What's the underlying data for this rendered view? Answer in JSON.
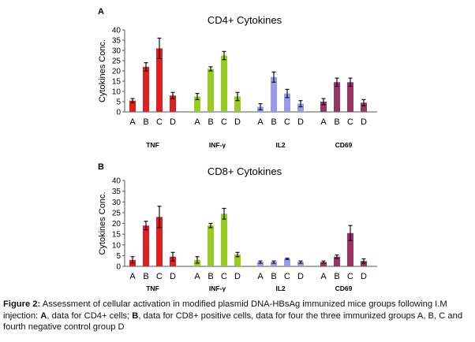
{
  "chart_data": [
    {
      "panel": "A",
      "type": "bar",
      "title": "CD4+ Cytokines",
      "ylabel": "Cytokines Conc.",
      "ylim": [
        0,
        40
      ],
      "yticks": [
        "0",
        "5",
        "10",
        "15",
        "20",
        "25",
        "30",
        "35",
        "40"
      ],
      "categories": [
        "A",
        "B",
        "C",
        "D"
      ],
      "groups": [
        {
          "name": "TNF",
          "color": "#e02020",
          "values": [
            5.5,
            22,
            31,
            8
          ],
          "errors": [
            1,
            2,
            5,
            1.5
          ]
        },
        {
          "name": "INF-γ",
          "color": "#99cc22",
          "values": [
            7.5,
            21,
            27.5,
            7.5
          ],
          "errors": [
            1.5,
            1,
            2,
            2
          ]
        },
        {
          "name": "IL2",
          "color": "#9999ee",
          "values": [
            2.5,
            17,
            9,
            4
          ],
          "errors": [
            1.5,
            2.5,
            2,
            1.5
          ]
        },
        {
          "name": "CD69",
          "color": "#993366",
          "values": [
            5,
            14.5,
            14.5,
            4.5
          ],
          "errors": [
            1.5,
            2,
            2,
            1.5
          ]
        }
      ]
    },
    {
      "panel": "B",
      "type": "bar",
      "title": "CD8+ Cytokines",
      "ylabel": "Cytokines Conc.",
      "ylim": [
        0,
        40
      ],
      "yticks": [
        "0",
        "5",
        "10",
        "15",
        "20",
        "25",
        "30",
        "35",
        "40"
      ],
      "categories": [
        "A",
        "B",
        "C",
        "D"
      ],
      "groups": [
        {
          "name": "TNF",
          "color": "#e02020",
          "values": [
            3,
            19,
            23,
            4.5
          ],
          "errors": [
            1.5,
            2,
            5,
            2
          ]
        },
        {
          "name": "INF-γ",
          "color": "#99cc22",
          "values": [
            3,
            19,
            24.5,
            5.5
          ],
          "errors": [
            1.5,
            1,
            2.5,
            1
          ]
        },
        {
          "name": "IL2",
          "color": "#9999ee",
          "values": [
            2,
            2,
            3.5,
            2
          ],
          "errors": [
            0.5,
            0.5,
            0.3,
            0.5
          ]
        },
        {
          "name": "CD69",
          "color": "#993366",
          "values": [
            2,
            4.5,
            15.5,
            2.5
          ],
          "errors": [
            0.5,
            0.8,
            3.5,
            1
          ]
        }
      ]
    }
  ],
  "caption": {
    "fig_label": "Figure 2:",
    "p1": " Assessment of cellular activation in modified plasmid DNA-HBsAg immunized mice groups following I.M injection: ",
    "a": "A",
    "p2": ", data for CD4+ cells; ",
    "b": "B",
    "p3": ", data for CD8+ positive cells, data for four the three immunized groups A, B, C and fourth negative control group D"
  }
}
